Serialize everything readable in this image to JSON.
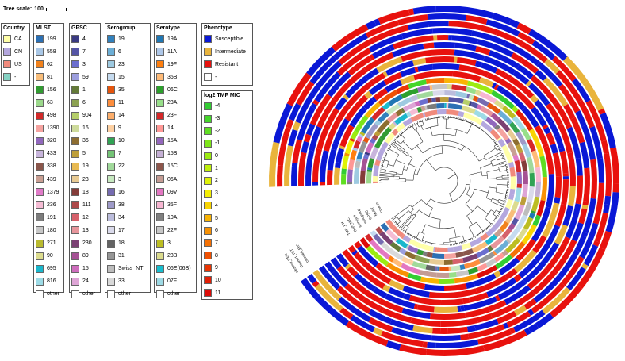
{
  "tree_scale": {
    "label": "Tree scale:",
    "value": "100"
  },
  "legends": [
    {
      "id": "country",
      "title": "Country",
      "items": [
        {
          "label": "CA",
          "color": "#ffffa8"
        },
        {
          "label": "CN",
          "color": "#b4a7de"
        },
        {
          "label": "US",
          "color": "#f08a7c"
        },
        {
          "label": "-",
          "color": "#85d2c3"
        }
      ]
    },
    {
      "id": "mlst",
      "title": "MLST",
      "items": [
        {
          "label": "199",
          "color": "#2c70b4"
        },
        {
          "label": "558",
          "color": "#a9c7e6"
        },
        {
          "label": "62",
          "color": "#f2821c"
        },
        {
          "label": "81",
          "color": "#f8bd7a"
        },
        {
          "label": "156",
          "color": "#329b32"
        },
        {
          "label": "63",
          "color": "#9bd88b"
        },
        {
          "label": "498",
          "color": "#d22a2a"
        },
        {
          "label": "1390",
          "color": "#f5a3a0"
        },
        {
          "label": "320",
          "color": "#9168bd"
        },
        {
          "label": "433",
          "color": "#c8b5dc"
        },
        {
          "label": "338",
          "color": "#8a564b"
        },
        {
          "label": "439",
          "color": "#c99f93"
        },
        {
          "label": "1379",
          "color": "#e07bc8"
        },
        {
          "label": "236",
          "color": "#f5bcd4"
        },
        {
          "label": "191",
          "color": "#7c7c7c"
        },
        {
          "label": "180",
          "color": "#c7c7c7"
        },
        {
          "label": "271",
          "color": "#b9ba2f"
        },
        {
          "label": "90",
          "color": "#dcdc8e"
        },
        {
          "label": "695",
          "color": "#1ab7cc"
        },
        {
          "label": "816",
          "color": "#9ddbe6"
        },
        {
          "label": "other",
          "color": "#ffffff"
        }
      ]
    },
    {
      "id": "gpsc",
      "title": "GPSC",
      "items": [
        {
          "label": "4",
          "color": "#3a3a82"
        },
        {
          "label": "7",
          "color": "#5555a6"
        },
        {
          "label": "3",
          "color": "#6b6ecf"
        },
        {
          "label": "59",
          "color": "#9c9ede"
        },
        {
          "label": "1",
          "color": "#647a39"
        },
        {
          "label": "6",
          "color": "#8ca252"
        },
        {
          "label": "904",
          "color": "#b6cf6a"
        },
        {
          "label": "16",
          "color": "#cedb9c"
        },
        {
          "label": "36",
          "color": "#8d6d31"
        },
        {
          "label": "5",
          "color": "#bd9e39"
        },
        {
          "label": "19",
          "color": "#e8ba52"
        },
        {
          "label": "23",
          "color": "#e8cb94"
        },
        {
          "label": "18",
          "color": "#843c39"
        },
        {
          "label": "111",
          "color": "#ad494a"
        },
        {
          "label": "12",
          "color": "#d6616b"
        },
        {
          "label": "13",
          "color": "#e7969c"
        },
        {
          "label": "230",
          "color": "#7b4173"
        },
        {
          "label": "89",
          "color": "#a55194"
        },
        {
          "label": "15",
          "color": "#ce6dbd"
        },
        {
          "label": "24",
          "color": "#dea5d6"
        },
        {
          "label": "other",
          "color": "#ffffff"
        }
      ]
    },
    {
      "id": "serogroup",
      "title": "Serogroup",
      "items": [
        {
          "label": "19",
          "color": "#3181bd"
        },
        {
          "label": "6",
          "color": "#6baed6"
        },
        {
          "label": "23",
          "color": "#9ecae1"
        },
        {
          "label": "15",
          "color": "#c6dbef"
        },
        {
          "label": "35",
          "color": "#e6550d"
        },
        {
          "label": "11",
          "color": "#fd8d3c"
        },
        {
          "label": "14",
          "color": "#fdae6b"
        },
        {
          "label": "9",
          "color": "#fdd0a2"
        },
        {
          "label": "10",
          "color": "#31a354"
        },
        {
          "label": "7",
          "color": "#74c476"
        },
        {
          "label": "22",
          "color": "#a1d99b"
        },
        {
          "label": "3",
          "color": "#c7e9c0"
        },
        {
          "label": "16",
          "color": "#756bb1"
        },
        {
          "label": "38",
          "color": "#9e9ac8"
        },
        {
          "label": "34",
          "color": "#bcbddc"
        },
        {
          "label": "17",
          "color": "#dadaeb"
        },
        {
          "label": "18",
          "color": "#636363"
        },
        {
          "label": "31",
          "color": "#969696"
        },
        {
          "label": "Swiss_NT",
          "color": "#bdbdbd"
        },
        {
          "label": "33",
          "color": "#d9d9d9"
        },
        {
          "label": "other",
          "color": "#ffffff"
        }
      ]
    },
    {
      "id": "serotype",
      "title": "Serotype",
      "items": [
        {
          "label": "19A",
          "color": "#1f77b4"
        },
        {
          "label": "11A",
          "color": "#aec7e8"
        },
        {
          "label": "19F",
          "color": "#ff7f0e"
        },
        {
          "label": "35B",
          "color": "#ffbb78"
        },
        {
          "label": "06C",
          "color": "#2ca02c"
        },
        {
          "label": "23A",
          "color": "#98df8a"
        },
        {
          "label": "23F",
          "color": "#d62728"
        },
        {
          "label": "14",
          "color": "#ff9896"
        },
        {
          "label": "15A",
          "color": "#9467bd"
        },
        {
          "label": "15B",
          "color": "#c5b0d5"
        },
        {
          "label": "15C",
          "color": "#8c564b"
        },
        {
          "label": "06A",
          "color": "#c49c94"
        },
        {
          "label": "09V",
          "color": "#e377c2"
        },
        {
          "label": "35F",
          "color": "#f7b6d2"
        },
        {
          "label": "10A",
          "color": "#7f7f7f"
        },
        {
          "label": "22F",
          "color": "#c7c7c7"
        },
        {
          "label": "3",
          "color": "#bcbd22"
        },
        {
          "label": "23B",
          "color": "#dbdb8d"
        },
        {
          "label": "06E(06B)",
          "color": "#17becf"
        },
        {
          "label": "07F",
          "color": "#9edae5"
        },
        {
          "label": "other",
          "color": "#ffffff"
        }
      ]
    },
    {
      "id": "phenotype",
      "title": "Phenotype",
      "items": [
        {
          "label": "Susceptible",
          "color": "#0a18d6"
        },
        {
          "label": "Intermediate",
          "color": "#e9b43c"
        },
        {
          "label": "Resistant",
          "color": "#e8120e"
        },
        {
          "label": "-",
          "color": "#ffffff"
        }
      ]
    },
    {
      "id": "log2-tmp-mic",
      "title": "log2 TMP MIC",
      "items": [
        {
          "label": "-4",
          "color": "#33cc33"
        },
        {
          "label": "-3",
          "color": "#44d62a"
        },
        {
          "label": "-2",
          "color": "#5fde22"
        },
        {
          "label": "-1",
          "color": "#7de51a"
        },
        {
          "label": "0",
          "color": "#9ceb12"
        },
        {
          "label": "1",
          "color": "#bff00c"
        },
        {
          "label": "2",
          "color": "#dff208"
        },
        {
          "label": "3",
          "color": "#f3ee05"
        },
        {
          "label": "4",
          "color": "#f8d404"
        },
        {
          "label": "5",
          "color": "#f9b404"
        },
        {
          "label": "6",
          "color": "#f89204"
        },
        {
          "label": "7",
          "color": "#f57104"
        },
        {
          "label": "8",
          "color": "#f05204"
        },
        {
          "label": "9",
          "color": "#ea3604"
        },
        {
          "label": "10",
          "color": "#e31f06"
        },
        {
          "label": "11",
          "color": "#dd0c08"
        }
      ]
    }
  ],
  "ring_labels": [
    "cleaned_PEN",
    "cleaned_TET",
    "cleaned_ERY",
    "TMP_MIC",
    "TMP_PH",
    "serotype",
    "serogroup",
    "GPSC",
    "MLST",
    "country"
  ]
}
